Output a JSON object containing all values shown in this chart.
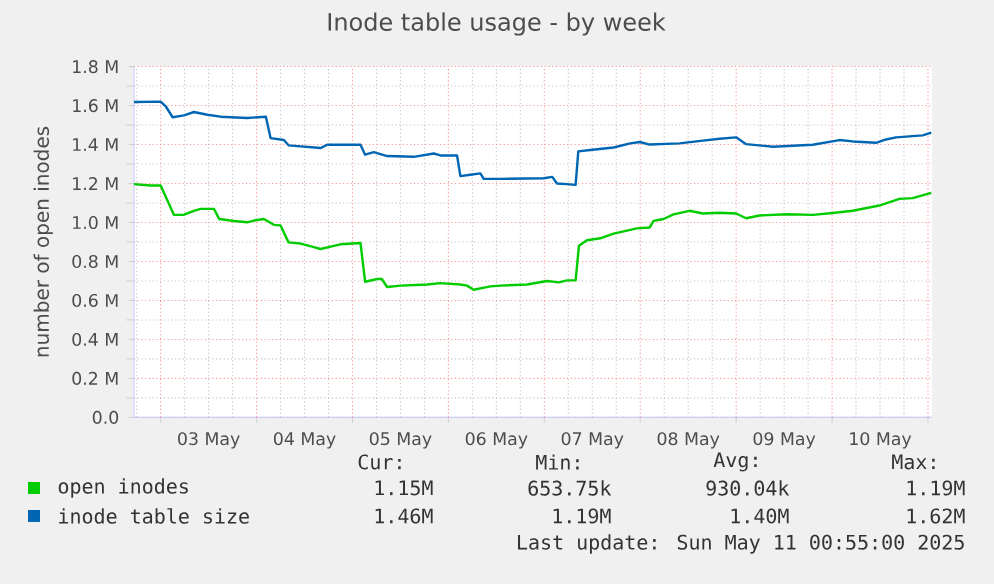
{
  "chart_data": {
    "type": "line",
    "title": "Inode table usage - by week",
    "ylabel": "number of open inodes",
    "xlim": [
      "2025-05-02T17:20",
      "2025-05-11T01:00"
    ],
    "xticks": [
      {
        "value": "2025-05-03T12:00",
        "label": "03 May"
      },
      {
        "value": "2025-05-04T12:00",
        "label": "04 May"
      },
      {
        "value": "2025-05-05T12:00",
        "label": "05 May"
      },
      {
        "value": "2025-05-06T12:00",
        "label": "06 May"
      },
      {
        "value": "2025-05-07T12:00",
        "label": "07 May"
      },
      {
        "value": "2025-05-08T12:00",
        "label": "08 May"
      },
      {
        "value": "2025-05-09T12:00",
        "label": "09 May"
      },
      {
        "value": "2025-05-10T12:00",
        "label": "10 May"
      }
    ],
    "ylim": [
      0,
      1.8
    ],
    "yticks": [
      {
        "value": 0,
        "label": "0.0"
      },
      {
        "value": 0.2,
        "label": "0.2 M"
      },
      {
        "value": 0.4,
        "label": "0.4 M"
      },
      {
        "value": 0.6,
        "label": "0.6 M"
      },
      {
        "value": 0.8,
        "label": "0.8 M"
      },
      {
        "value": 1.0,
        "label": "1.0 M"
      },
      {
        "value": 1.2,
        "label": "1.2 M"
      },
      {
        "value": 1.4,
        "label": "1.4 M"
      },
      {
        "value": 1.6,
        "label": "1.6 M"
      },
      {
        "value": 1.8,
        "label": "1.8 M"
      }
    ],
    "grid": true,
    "legend": "bottom",
    "series": [
      {
        "name": "open inodes",
        "color": "#00cc00",
        "x": [
          "2025-05-02T17:20",
          "2025-05-02T21:30",
          "2025-05-03T00:00",
          "2025-05-03T01:20",
          "2025-05-03T03:20",
          "2025-05-03T05:50",
          "2025-05-03T08:20",
          "2025-05-03T10:00",
          "2025-05-03T13:20",
          "2025-05-03T14:40",
          "2025-05-03T18:20",
          "2025-05-03T21:40",
          "2025-05-03T23:20",
          "2025-05-04T01:50",
          "2025-05-04T04:20",
          "2025-05-04T06:00",
          "2025-05-04T08:00",
          "2025-05-04T11:00",
          "2025-05-04T14:20",
          "2025-05-04T16:00",
          "2025-05-04T19:20",
          "2025-05-04T21:00",
          "2025-05-05T02:00",
          "2025-05-05T03:10",
          "2025-05-05T06:10",
          "2025-05-05T07:20",
          "2025-05-05T08:40",
          "2025-05-05T12:00",
          "2025-05-05T18:40",
          "2025-05-05T22:00",
          "2025-05-06T03:00",
          "2025-05-06T04:40",
          "2025-05-06T06:20",
          "2025-05-06T10:30",
          "2025-05-06T13:00",
          "2025-05-06T19:40",
          "2025-05-07T00:40",
          "2025-05-07T03:40",
          "2025-05-07T05:40",
          "2025-05-07T07:50",
          "2025-05-07T08:40",
          "2025-05-07T10:40",
          "2025-05-07T14:00",
          "2025-05-07T17:20",
          "2025-05-07T23:10",
          "2025-05-08T02:20",
          "2025-05-08T03:20",
          "2025-05-08T05:50",
          "2025-05-08T08:20",
          "2025-05-08T12:20",
          "2025-05-08T15:40",
          "2025-05-08T19:50",
          "2025-05-09T00:00",
          "2025-05-09T02:30",
          "2025-05-09T05:50",
          "2025-05-09T12:40",
          "2025-05-09T19:10",
          "2025-05-10T00:10",
          "2025-05-10T05:10",
          "2025-05-10T11:50",
          "2025-05-10T16:50",
          "2025-05-10T20:10",
          "2025-05-11T00:50"
        ],
        "values": [
          1.197,
          1.19,
          1.19,
          1.13,
          1.039,
          1.04,
          1.06,
          1.07,
          1.07,
          1.018,
          1.008,
          1.001,
          1.01,
          1.018,
          0.988,
          0.985,
          0.898,
          0.892,
          0.874,
          0.864,
          0.88,
          0.888,
          0.895,
          0.696,
          0.71,
          0.71,
          0.669,
          0.676,
          0.682,
          0.689,
          0.682,
          0.676,
          0.655,
          0.672,
          0.676,
          0.682,
          0.7,
          0.693,
          0.703,
          0.703,
          0.881,
          0.909,
          0.919,
          0.943,
          0.97,
          0.974,
          1.008,
          1.018,
          1.042,
          1.06,
          1.046,
          1.05,
          1.046,
          1.022,
          1.036,
          1.042,
          1.039,
          1.049,
          1.06,
          1.087,
          1.121,
          1.125,
          1.152
        ]
      },
      {
        "name": "inode table size",
        "color": "#0066b3",
        "x": [
          "2025-05-02T17:20",
          "2025-05-03T00:00",
          "2025-05-03T01:20",
          "2025-05-03T03:00",
          "2025-05-03T05:50",
          "2025-05-03T08:20",
          "2025-05-03T11:40",
          "2025-05-03T15:00",
          "2025-05-03T21:40",
          "2025-05-04T02:20",
          "2025-05-04T03:30",
          "2025-05-04T06:50",
          "2025-05-04T08:00",
          "2025-05-04T16:00",
          "2025-05-04T17:40",
          "2025-05-05T02:00",
          "2025-05-05T03:10",
          "2025-05-05T05:20",
          "2025-05-05T08:40",
          "2025-05-05T15:20",
          "2025-05-05T20:20",
          "2025-05-05T22:00",
          "2025-05-06T02:10",
          "2025-05-06T03:00",
          "2025-05-06T05:30",
          "2025-05-06T08:00",
          "2025-05-06T08:50",
          "2025-05-06T13:00",
          "2025-05-06T23:50",
          "2025-05-07T02:00",
          "2025-05-07T03:10",
          "2025-05-07T05:40",
          "2025-05-07T07:50",
          "2025-05-07T08:30",
          "2025-05-07T11:30",
          "2025-05-07T17:20",
          "2025-05-07T21:30",
          "2025-05-07T23:55",
          "2025-05-08T02:20",
          "2025-05-08T09:50",
          "2025-05-08T15:40",
          "2025-05-08T19:50",
          "2025-05-09T00:00",
          "2025-05-09T02:30",
          "2025-05-09T09:10",
          "2025-05-09T19:10",
          "2025-05-10T01:50",
          "2025-05-10T05:10",
          "2025-05-10T11:00",
          "2025-05-10T13:30",
          "2025-05-10T16:00",
          "2025-05-10T22:40",
          "2025-05-11T00:50"
        ],
        "values": [
          1.618,
          1.62,
          1.594,
          1.54,
          1.55,
          1.567,
          1.553,
          1.543,
          1.536,
          1.543,
          1.433,
          1.423,
          1.396,
          1.382,
          1.399,
          1.399,
          1.348,
          1.361,
          1.341,
          1.337,
          1.354,
          1.344,
          1.344,
          1.238,
          1.245,
          1.252,
          1.224,
          1.224,
          1.227,
          1.234,
          1.2,
          1.197,
          1.193,
          1.365,
          1.372,
          1.385,
          1.406,
          1.413,
          1.4,
          1.406,
          1.42,
          1.43,
          1.437,
          1.402,
          1.389,
          1.399,
          1.423,
          1.416,
          1.409,
          1.426,
          1.437,
          1.447,
          1.461
        ]
      }
    ],
    "annotations": [
      "Cur:",
      "Min:",
      "Avg:",
      "Max:",
      "1.15M",
      "653.75k",
      "930.04k",
      "1.19M",
      "1.46M",
      "1.19M",
      "1.40M",
      "1.62M",
      "Last update: Sun May 11 00:55:00 2025"
    ]
  }
}
